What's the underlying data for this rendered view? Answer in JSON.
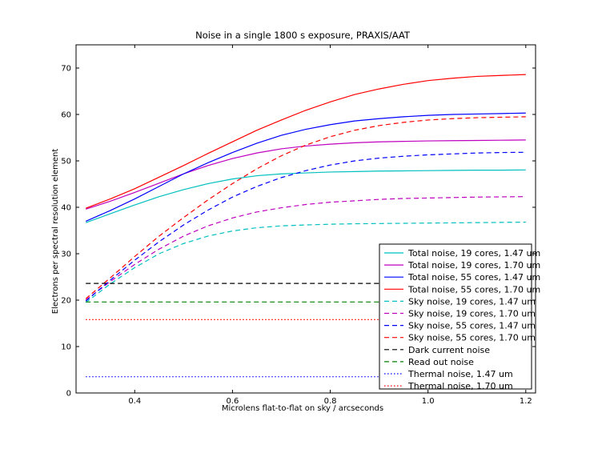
{
  "chart_data": {
    "type": "line",
    "title": "Noise in a single 1800 s exposure, PRAXIS/AAT",
    "xlabel": "Microlens flat-to-flat on sky / arcseconds",
    "ylabel": "Electrons per spectral resolution element",
    "xlim": [
      0.28,
      1.22
    ],
    "ylim": [
      0,
      75
    ],
    "xticks": [
      0.4,
      0.6,
      0.8,
      1.0,
      1.2
    ],
    "xtick_labels": [
      "0.4",
      "0.6",
      "0.8",
      "1.0",
      "1.2"
    ],
    "yticks": [
      0,
      10,
      20,
      30,
      40,
      50,
      60,
      70
    ],
    "ytick_labels": [
      "0",
      "10",
      "20",
      "30",
      "40",
      "50",
      "60",
      "70"
    ],
    "grid": false,
    "legend_position": "lower-right",
    "x": [
      0.3,
      0.35,
      0.4,
      0.45,
      0.5,
      0.55,
      0.6,
      0.65,
      0.7,
      0.75,
      0.8,
      0.85,
      0.9,
      0.95,
      1.0,
      1.05,
      1.1,
      1.15,
      1.2
    ],
    "series": [
      {
        "name": "Total noise, 19 cores, 1.47 um",
        "color": "#00bfbf",
        "style": "solid",
        "values": [
          36.7,
          38.6,
          40.5,
          42.3,
          43.8,
          45.1,
          46.1,
          46.8,
          47.2,
          47.4,
          47.6,
          47.7,
          47.8,
          47.85,
          47.9,
          47.95,
          48.0,
          48.0,
          48.05
        ]
      },
      {
        "name": "Total noise, 19 cores, 1.70 um",
        "color": "#bf00bf",
        "style": "solid",
        "values": [
          39.6,
          41.3,
          43.2,
          45.2,
          47.2,
          49.0,
          50.5,
          51.7,
          52.6,
          53.2,
          53.6,
          53.9,
          54.1,
          54.2,
          54.3,
          54.35,
          54.4,
          54.45,
          54.5
        ]
      },
      {
        "name": "Total noise, 55 cores, 1.47 um",
        "color": "#0000ff",
        "style": "solid",
        "values": [
          37.0,
          39.3,
          41.8,
          44.5,
          47.2,
          49.6,
          51.8,
          53.8,
          55.5,
          56.8,
          57.8,
          58.6,
          59.1,
          59.5,
          59.8,
          60.0,
          60.1,
          60.2,
          60.3
        ]
      },
      {
        "name": "Total noise, 55 cores, 1.70 um",
        "color": "#ff0000",
        "style": "solid",
        "values": [
          39.8,
          41.8,
          44.0,
          46.5,
          49.0,
          51.6,
          54.1,
          56.6,
          58.8,
          60.9,
          62.7,
          64.3,
          65.5,
          66.5,
          67.3,
          67.8,
          68.2,
          68.4,
          68.6
        ]
      },
      {
        "name": "Sky noise, 19 cores, 1.47 um",
        "color": "#00bfbf",
        "style": "dashed",
        "values": [
          19.5,
          23.5,
          27.0,
          30.0,
          32.2,
          33.8,
          34.9,
          35.6,
          36.0,
          36.2,
          36.35,
          36.45,
          36.5,
          36.55,
          36.6,
          36.65,
          36.7,
          36.75,
          36.8
        ]
      },
      {
        "name": "Sky noise, 19 cores, 1.70 um",
        "color": "#bf00bf",
        "style": "dashed",
        "values": [
          20.0,
          24.0,
          27.7,
          31.0,
          33.8,
          36.0,
          37.7,
          39.0,
          39.9,
          40.6,
          41.1,
          41.4,
          41.7,
          41.9,
          42.0,
          42.1,
          42.2,
          42.25,
          42.3
        ]
      },
      {
        "name": "Sky noise, 55 cores, 1.47 um",
        "color": "#0000ff",
        "style": "dashed",
        "values": [
          19.8,
          24.3,
          28.6,
          32.6,
          36.2,
          39.4,
          42.2,
          44.5,
          46.4,
          47.9,
          49.1,
          50.0,
          50.6,
          51.0,
          51.3,
          51.5,
          51.7,
          51.8,
          51.85
        ]
      },
      {
        "name": "Sky noise, 55 cores, 1.70 um",
        "color": "#ff0000",
        "style": "dashed",
        "values": [
          20.3,
          24.8,
          29.4,
          33.8,
          37.8,
          41.6,
          45.1,
          48.3,
          51.1,
          53.4,
          55.2,
          56.6,
          57.6,
          58.3,
          58.8,
          59.1,
          59.3,
          59.4,
          59.5
        ]
      },
      {
        "name": "Dark current noise",
        "color": "#000000",
        "style": "dashed",
        "values": [
          23.6,
          23.6,
          23.6,
          23.6,
          23.6,
          23.6,
          23.6,
          23.6,
          23.6,
          23.6,
          23.6,
          23.6,
          23.6,
          23.6,
          23.6,
          23.6,
          23.6,
          23.6,
          23.6
        ]
      },
      {
        "name": "Read out noise",
        "color": "#008000",
        "style": "dashed",
        "values": [
          19.6,
          19.6,
          19.6,
          19.6,
          19.6,
          19.6,
          19.6,
          19.6,
          19.6,
          19.6,
          19.6,
          19.6,
          19.6,
          19.6,
          19.6,
          19.6,
          19.6,
          19.6,
          19.6
        ]
      },
      {
        "name": "Thermal noise, 1.47 um",
        "color": "#0000ff",
        "style": "dotted",
        "values": [
          3.5,
          3.5,
          3.5,
          3.5,
          3.5,
          3.5,
          3.5,
          3.5,
          3.5,
          3.5,
          3.5,
          3.5,
          3.5,
          3.5,
          3.5,
          3.5,
          3.5,
          3.5,
          3.5
        ]
      },
      {
        "name": "Thermal noise, 1.70 um",
        "color": "#ff0000",
        "style": "dotted",
        "values": [
          15.8,
          15.8,
          15.8,
          15.8,
          15.8,
          15.8,
          15.8,
          15.8,
          15.8,
          15.8,
          15.8,
          15.8,
          15.8,
          15.8,
          15.8,
          15.8,
          15.8,
          15.8,
          15.8
        ]
      }
    ]
  }
}
